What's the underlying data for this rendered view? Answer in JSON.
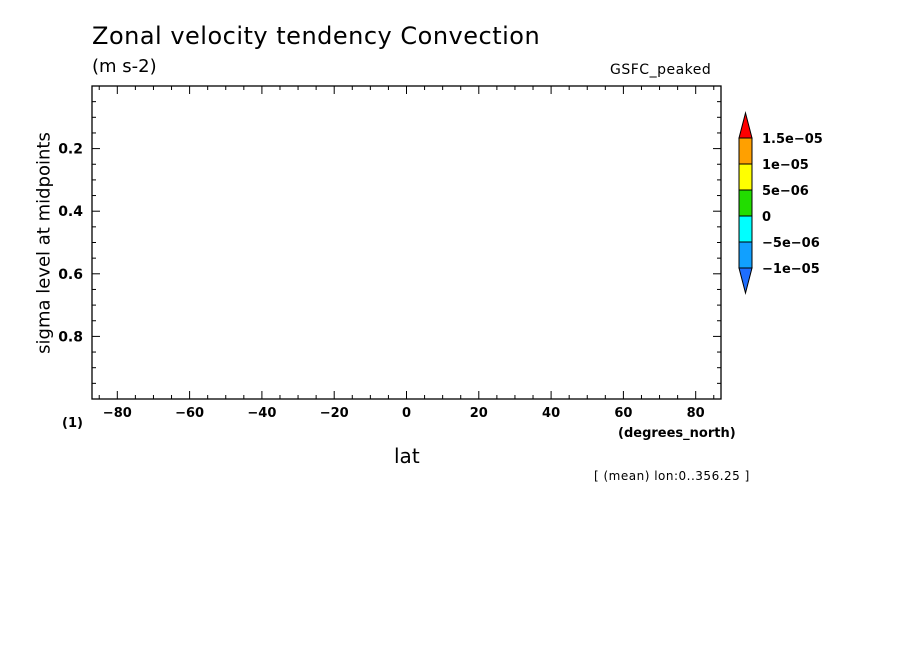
{
  "chart_data": {
    "type": "heatmap",
    "title": "Zonal velocity tendency Convection",
    "units_label": "(m s-2)",
    "source_label": "GSFC_peaked",
    "xlabel": "lat",
    "x_units": "(degrees_north)",
    "ylabel": "sigma level at midpoints",
    "y_units": "(1)",
    "averaging_note": "[ (mean) lon:0..356.25 ]",
    "xlim": [
      -87,
      87
    ],
    "ylim": [
      1.0,
      0.0
    ],
    "x_ticks": [
      {
        "value": -80,
        "label": "−80"
      },
      {
        "value": -60,
        "label": "−60"
      },
      {
        "value": -40,
        "label": "−40"
      },
      {
        "value": -20,
        "label": "−20"
      },
      {
        "value": 0,
        "label": "0"
      },
      {
        "value": 20,
        "label": "20"
      },
      {
        "value": 40,
        "label": "40"
      },
      {
        "value": 60,
        "label": "60"
      },
      {
        "value": 80,
        "label": "80"
      }
    ],
    "y_ticks": [
      {
        "value": 0.2,
        "label": "0.2"
      },
      {
        "value": 0.4,
        "label": "0.4"
      },
      {
        "value": 0.6,
        "label": "0.6"
      },
      {
        "value": 0.8,
        "label": "0.8"
      }
    ],
    "colorbar": {
      "levels": [
        -1e-05,
        -5e-06,
        0,
        5e-06,
        1e-05,
        1.5e-05
      ],
      "level_labels": [
        "−1e−05",
        "−5e−06",
        "0",
        "5e−06",
        "1e−05",
        "1.5e−05"
      ],
      "colors": [
        "#1e6eff",
        "#11a0ff",
        "#00ffff",
        "#22dd00",
        "#ffff00",
        "#ffa000",
        "#ff0000"
      ]
    },
    "values": []
  }
}
